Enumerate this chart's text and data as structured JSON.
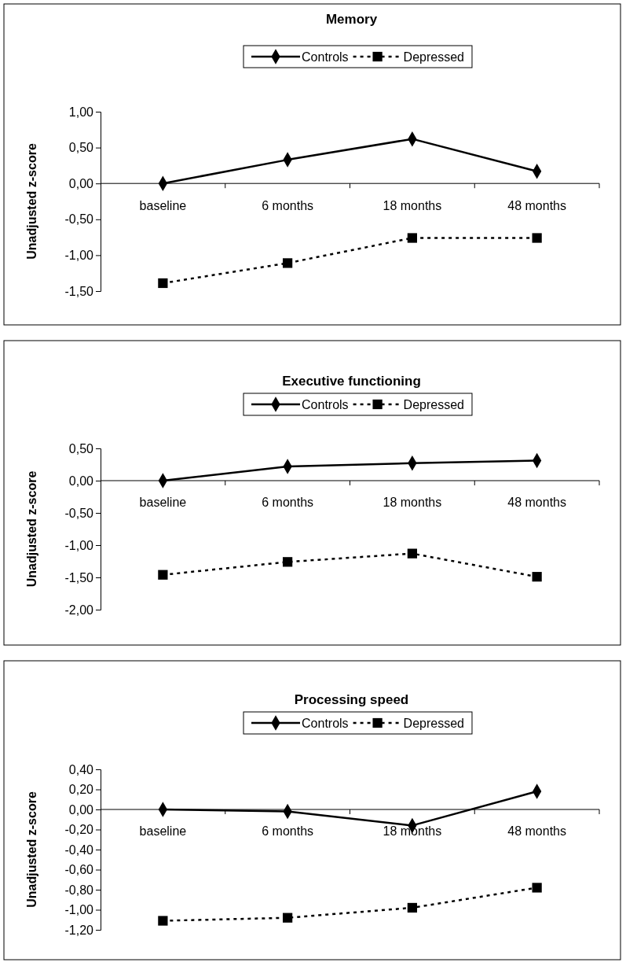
{
  "chart_data": [
    {
      "type": "line",
      "title": "Memory",
      "ylabel": "Unadjusted z-score",
      "categories": [
        "baseline",
        "6 months",
        "18 months",
        "48 months"
      ],
      "legend": "top",
      "grid": false,
      "ylim": [
        -1.5,
        1.0
      ],
      "yticks": [
        {
          "value": 1.0,
          "label": "1,00"
        },
        {
          "value": 0.5,
          "label": "0,50"
        },
        {
          "value": 0,
          "label": "0,00"
        },
        {
          "value": -0.5,
          "label": "-0,50"
        },
        {
          "value": -1.0,
          "label": "-1,00"
        },
        {
          "value": -1.5,
          "label": "-1,50"
        }
      ],
      "series": [
        {
          "name": "Controls",
          "color": "#000000",
          "marker": "diamond",
          "line_style": "solid",
          "values": [
            0,
            0.33,
            0.62,
            0.17
          ]
        },
        {
          "name": "Depressed",
          "color": "#000000",
          "marker": "square",
          "line_style": "dashed",
          "values": [
            -1.39,
            -1.11,
            -0.76,
            -0.76
          ]
        }
      ]
    },
    {
      "type": "line",
      "title": "Executive functioning",
      "ylabel": "Unadjusted z-score",
      "categories": [
        "baseline",
        "6 months",
        "18 months",
        "48 months"
      ],
      "legend": "top",
      "grid": false,
      "ylim": [
        -2.0,
        0.5
      ],
      "yticks": [
        {
          "value": 0.5,
          "label": "0,50"
        },
        {
          "value": 0,
          "label": "0,00"
        },
        {
          "value": -0.5,
          "label": "-0,50"
        },
        {
          "value": -1.0,
          "label": "-1,00"
        },
        {
          "value": -1.5,
          "label": "-1,50"
        },
        {
          "value": -2.0,
          "label": "-2,00"
        }
      ],
      "series": [
        {
          "name": "Controls",
          "color": "#000000",
          "marker": "diamond",
          "line_style": "solid",
          "values": [
            0,
            0.22,
            0.27,
            0.31
          ]
        },
        {
          "name": "Depressed",
          "color": "#000000",
          "marker": "square",
          "line_style": "dashed",
          "values": [
            -1.46,
            -1.26,
            -1.13,
            -1.49
          ]
        }
      ]
    },
    {
      "type": "line",
      "title": "Processing speed",
      "ylabel": "Unadjusted z-score",
      "categories": [
        "baseline",
        "6 months",
        "18 months",
        "48 months"
      ],
      "legend": "top",
      "grid": false,
      "ylim": [
        -1.2,
        0.4
      ],
      "yticks": [
        {
          "value": 0.4,
          "label": "0,40"
        },
        {
          "value": 0.2,
          "label": "0,20"
        },
        {
          "value": 0,
          "label": "0,00"
        },
        {
          "value": -0.2,
          "label": "-0,20"
        },
        {
          "value": -0.4,
          "label": "-0,40"
        },
        {
          "value": -0.6,
          "label": "-0,60"
        },
        {
          "value": -0.8,
          "label": "-0,80"
        },
        {
          "value": -1.0,
          "label": "-1,00"
        },
        {
          "value": -1.2,
          "label": "-1,20"
        }
      ],
      "series": [
        {
          "name": "Controls",
          "color": "#000000",
          "marker": "diamond",
          "line_style": "solid",
          "values": [
            0,
            -0.02,
            -0.16,
            0.18
          ]
        },
        {
          "name": "Depressed",
          "color": "#000000",
          "marker": "square",
          "line_style": "dashed",
          "values": [
            -1.11,
            -1.08,
            -0.98,
            -0.78
          ]
        }
      ]
    }
  ]
}
